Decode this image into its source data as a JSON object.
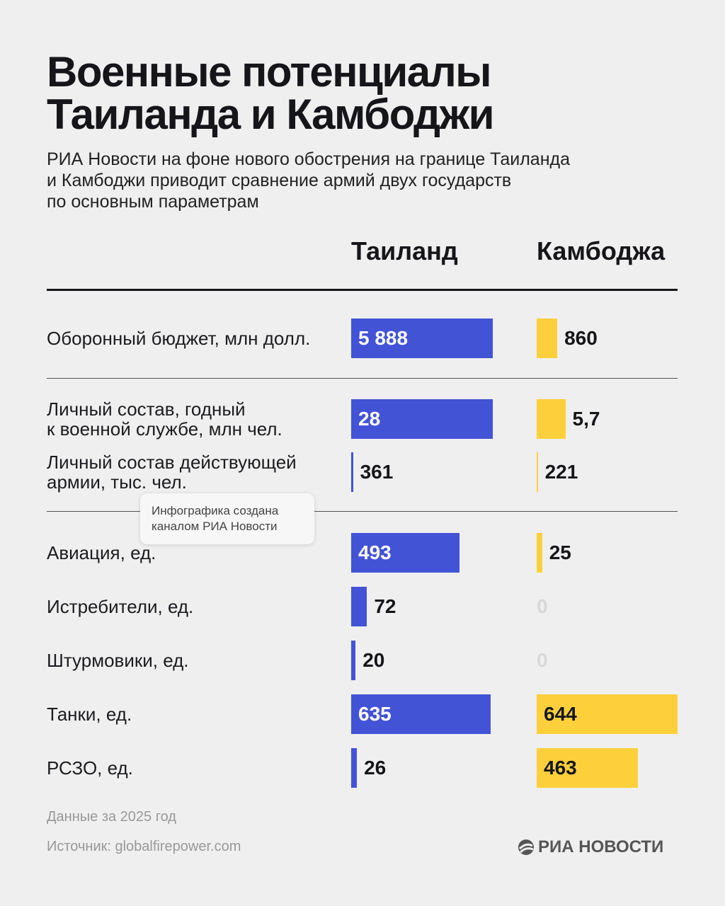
{
  "chart_data": {
    "type": "bar-comparison",
    "title": [
      "Военные потенциалы",
      "Таиланда и Камбоджи"
    ],
    "subtitle": [
      "РИА Новости на фоне нового обострения на границе Таиланда",
      "и Камбоджи приводит сравнение армий двух государств",
      "по основным параметрам"
    ],
    "series": [
      {
        "name": "Таиланд",
        "color": "#4353d6"
      },
      {
        "name": "Камбоджа",
        "color": "#fdd03b"
      }
    ],
    "groups": [
      {
        "rows": [
          {
            "label": "Оборонный бюджет, млн долл.",
            "values": [
              5888,
              860
            ],
            "value_labels": [
              "5 888",
              "860"
            ]
          }
        ]
      },
      {
        "rows": [
          {
            "label": [
              "Личный состав, годный",
              "к военной службе, млн чел."
            ],
            "values": [
              28,
              5.7
            ],
            "value_labels": [
              "28",
              "5,7"
            ]
          },
          {
            "label": [
              "Личный состав действующей",
              "армии, тыс. чел."
            ],
            "values": [
              361,
              221
            ]
          }
        ]
      },
      {
        "rows": [
          {
            "label": "Авиация, ед.",
            "values": [
              493,
              25
            ]
          },
          {
            "label": "Истребители, ед.",
            "values": [
              72,
              0
            ]
          },
          {
            "label": "Штурмовики, ед.",
            "values": [
              20,
              0
            ]
          },
          {
            "label": "Танки, ед.",
            "values": [
              635,
              644
            ]
          },
          {
            "label": "РСЗО, ед.",
            "values": [
              26,
              463
            ]
          }
        ]
      }
    ],
    "note": "Данные за 2025 год",
    "source": "Источник: globalfirepower.com",
    "logo": "РИА НОВОСТИ",
    "tooltip": [
      "Инфографика создана",
      "каналом РИА Новости"
    ]
  }
}
